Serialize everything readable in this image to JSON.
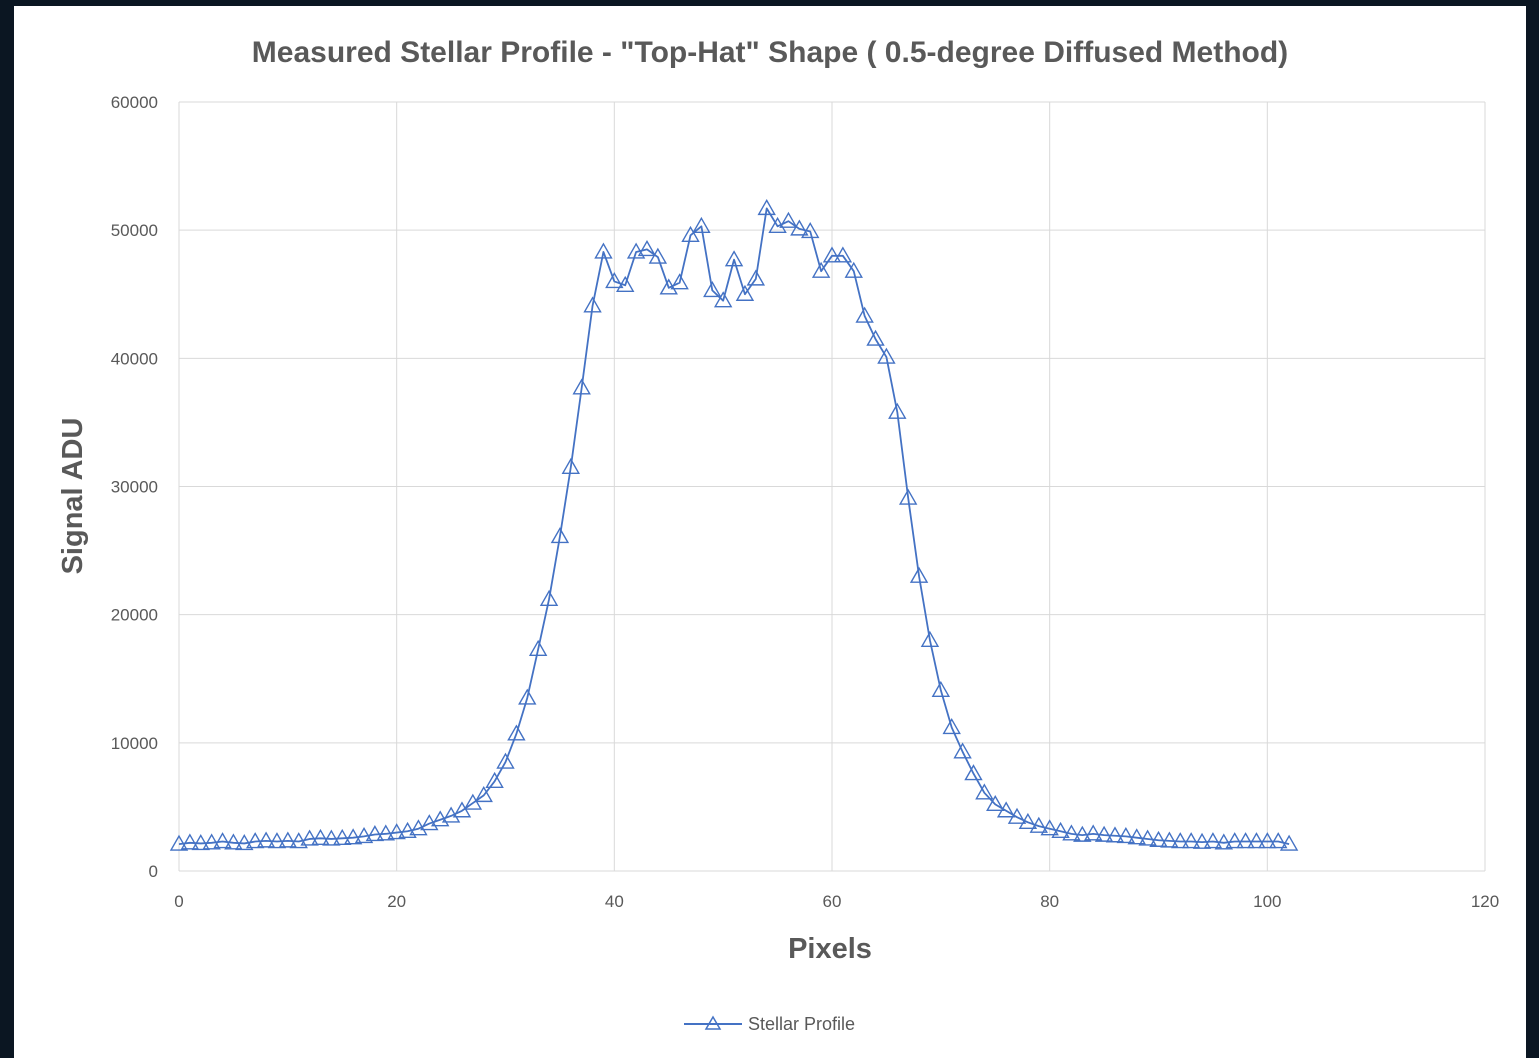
{
  "chart_data": {
    "type": "line",
    "title": "Measured Stellar Profile - \"Top-Hat\" Shape ( 0.5-degree Diffused Method)",
    "xlabel": "Pixels",
    "ylabel": "Signal ADU",
    "xlim": [
      0,
      120
    ],
    "ylim": [
      0,
      60000
    ],
    "xticks": [
      0,
      20,
      40,
      60,
      80,
      100,
      120
    ],
    "yticks": [
      0,
      10000,
      20000,
      30000,
      40000,
      50000,
      60000
    ],
    "grid": true,
    "legend_position": "bottom",
    "series": [
      {
        "name": "Stellar Profile",
        "color": "#4472c4",
        "marker": "triangle-open",
        "x": [
          0,
          1,
          2,
          3,
          4,
          5,
          6,
          7,
          8,
          9,
          10,
          11,
          12,
          13,
          14,
          15,
          16,
          17,
          18,
          19,
          20,
          21,
          22,
          23,
          24,
          25,
          26,
          27,
          28,
          29,
          30,
          31,
          32,
          33,
          34,
          35,
          36,
          37,
          38,
          39,
          40,
          41,
          42,
          43,
          44,
          45,
          46,
          47,
          48,
          49,
          50,
          51,
          52,
          53,
          54,
          55,
          56,
          57,
          58,
          59,
          60,
          61,
          62,
          63,
          64,
          65,
          66,
          67,
          68,
          69,
          70,
          71,
          72,
          73,
          74,
          75,
          76,
          77,
          78,
          79,
          80,
          81,
          82,
          83,
          84,
          85,
          86,
          87,
          88,
          89,
          90,
          91,
          92,
          93,
          94,
          95,
          96,
          97,
          98,
          99,
          100,
          101,
          102
        ],
        "y": [
          2100,
          2200,
          2150,
          2200,
          2300,
          2200,
          2150,
          2300,
          2350,
          2300,
          2350,
          2300,
          2500,
          2550,
          2500,
          2550,
          2600,
          2700,
          2850,
          2900,
          3000,
          3100,
          3300,
          3700,
          4000,
          4300,
          4700,
          5300,
          5900,
          7000,
          8500,
          10700,
          13500,
          17300,
          21200,
          26100,
          31500,
          37700,
          44100,
          48300,
          46000,
          45700,
          48300,
          48500,
          47900,
          45500,
          45900,
          49600,
          50300,
          45300,
          44500,
          47700,
          45000,
          46200,
          51700,
          50300,
          50700,
          50100,
          49900,
          46800,
          48000,
          48000,
          46800,
          43300,
          41500,
          40100,
          35800,
          29100,
          23000,
          18000,
          14100,
          11200,
          9300,
          7600,
          6100,
          5200,
          4700,
          4200,
          3800,
          3500,
          3300,
          3100,
          2900,
          2800,
          2900,
          2800,
          2750,
          2700,
          2600,
          2500,
          2400,
          2350,
          2300,
          2300,
          2250,
          2300,
          2200,
          2300,
          2300,
          2300,
          2300,
          2300,
          2100
        ]
      }
    ]
  }
}
